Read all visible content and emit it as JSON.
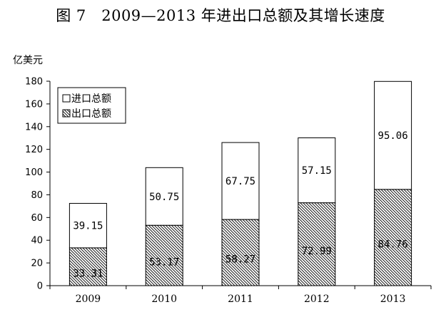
{
  "title": "图 7　2009—2013 年进出口总额及其增长速度",
  "chart_data": {
    "type": "bar",
    "stacked": true,
    "title": "图 7　2009—2013 年进出口总额及其增长速度",
    "ylabel": "亿美元",
    "xlabel": "",
    "categories": [
      "2009",
      "2010",
      "2011",
      "2012",
      "2013"
    ],
    "ylim": [
      0,
      180
    ],
    "yticks": [
      0,
      20,
      40,
      60,
      80,
      100,
      120,
      140,
      160,
      180
    ],
    "series": [
      {
        "name": "出口总额",
        "values": [
          33.31,
          53.17,
          58.27,
          72.99,
          84.76
        ],
        "fill": "hatched"
      },
      {
        "name": "进口总额",
        "values": [
          39.15,
          50.75,
          67.75,
          57.15,
          95.06
        ],
        "fill": "white"
      }
    ],
    "legend": [
      "进口总额",
      "出口总额"
    ],
    "legend_position": "top-left",
    "grid": false
  }
}
